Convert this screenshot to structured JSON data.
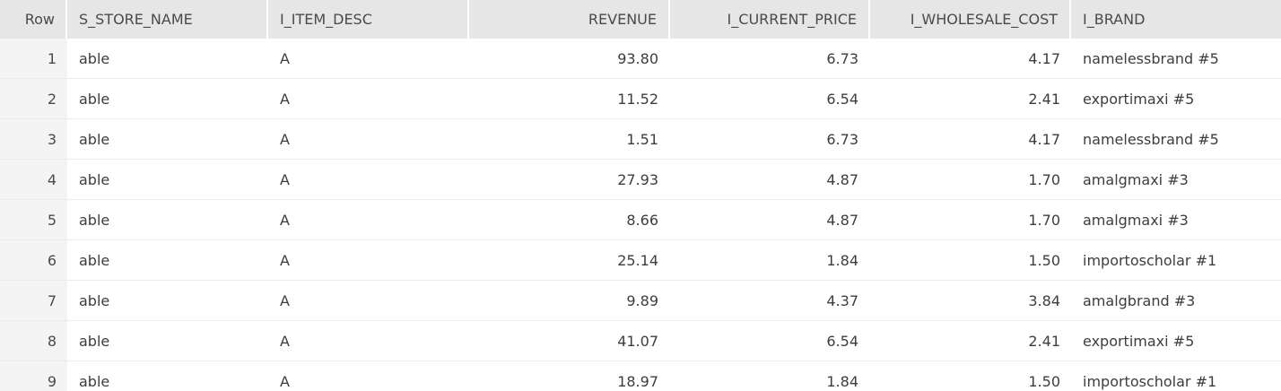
{
  "table": {
    "columns": [
      {
        "key": "row",
        "label": "Row"
      },
      {
        "key": "s_store_name",
        "label": "S_STORE_NAME"
      },
      {
        "key": "i_item_desc",
        "label": "I_ITEM_DESC"
      },
      {
        "key": "revenue",
        "label": "REVENUE"
      },
      {
        "key": "i_current_price",
        "label": "I_CURRENT_PRICE"
      },
      {
        "key": "i_wholesale_cost",
        "label": "I_WHOLESALE_COST"
      },
      {
        "key": "i_brand",
        "label": "I_BRAND"
      }
    ],
    "rows": [
      {
        "row": "1",
        "s_store_name": "able",
        "i_item_desc": "A",
        "revenue": "93.80",
        "i_current_price": "6.73",
        "i_wholesale_cost": "4.17",
        "i_brand": "namelessbrand #5"
      },
      {
        "row": "2",
        "s_store_name": "able",
        "i_item_desc": "A",
        "revenue": "11.52",
        "i_current_price": "6.54",
        "i_wholesale_cost": "2.41",
        "i_brand": "exportimaxi #5"
      },
      {
        "row": "3",
        "s_store_name": "able",
        "i_item_desc": "A",
        "revenue": "1.51",
        "i_current_price": "6.73",
        "i_wholesale_cost": "4.17",
        "i_brand": "namelessbrand #5"
      },
      {
        "row": "4",
        "s_store_name": "able",
        "i_item_desc": "A",
        "revenue": "27.93",
        "i_current_price": "4.87",
        "i_wholesale_cost": "1.70",
        "i_brand": "amalgmaxi #3"
      },
      {
        "row": "5",
        "s_store_name": "able",
        "i_item_desc": "A",
        "revenue": "8.66",
        "i_current_price": "4.87",
        "i_wholesale_cost": "1.70",
        "i_brand": "amalgmaxi #3"
      },
      {
        "row": "6",
        "s_store_name": "able",
        "i_item_desc": "A",
        "revenue": "25.14",
        "i_current_price": "1.84",
        "i_wholesale_cost": "1.50",
        "i_brand": "importoscholar #1"
      },
      {
        "row": "7",
        "s_store_name": "able",
        "i_item_desc": "A",
        "revenue": "9.89",
        "i_current_price": "4.37",
        "i_wholesale_cost": "3.84",
        "i_brand": "amalgbrand #3"
      },
      {
        "row": "8",
        "s_store_name": "able",
        "i_item_desc": "A",
        "revenue": "41.07",
        "i_current_price": "6.54",
        "i_wholesale_cost": "2.41",
        "i_brand": "exportimaxi #5"
      },
      {
        "row": "9",
        "s_store_name": "able",
        "i_item_desc": "A",
        "revenue": "18.97",
        "i_current_price": "1.84",
        "i_wholesale_cost": "1.50",
        "i_brand": "importoscholar #1"
      }
    ]
  },
  "colors": {
    "header_bg": "#e6e6e6",
    "rownum_bg": "#f4f4f4",
    "row_divider": "#ececec",
    "text": "#3d3d3d"
  }
}
